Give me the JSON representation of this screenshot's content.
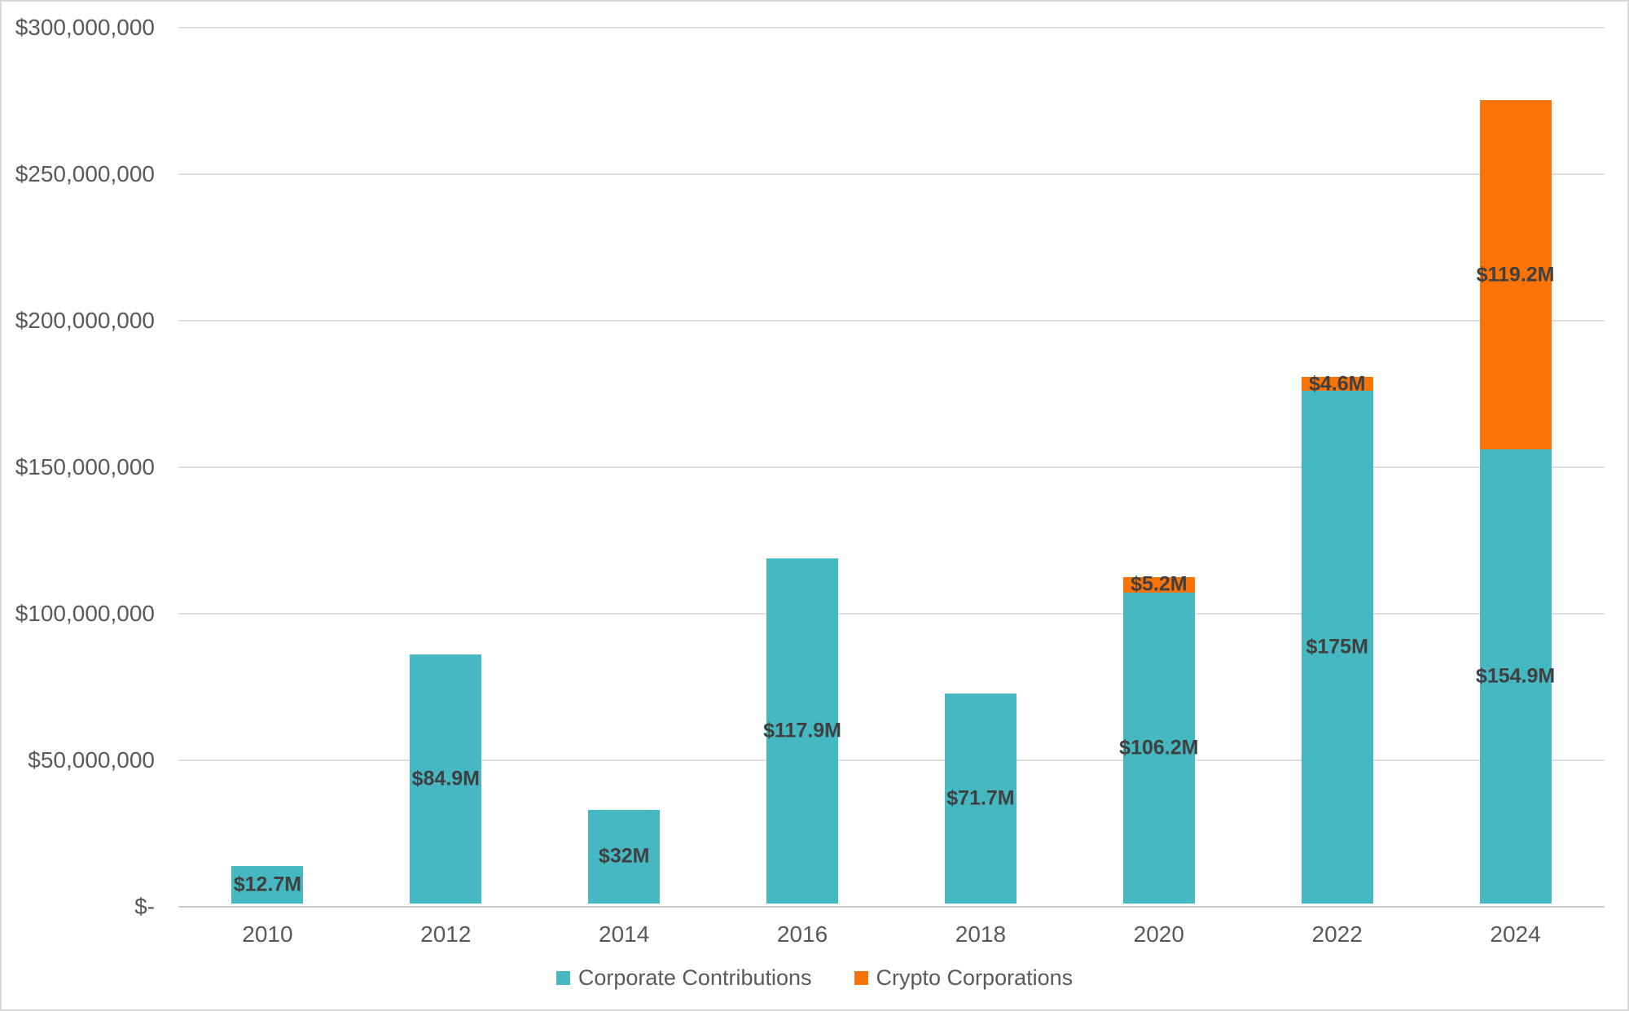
{
  "chart_data": {
    "type": "bar",
    "stacked": true,
    "title": "",
    "xlabel": "",
    "ylabel": "",
    "categories": [
      "2010",
      "2012",
      "2014",
      "2016",
      "2018",
      "2020",
      "2022",
      "2024"
    ],
    "series": [
      {
        "name": "Corporate Contributions",
        "color": "#45b8c2",
        "values_usd_millions": [
          12.7,
          84.9,
          32,
          117.9,
          71.7,
          106.2,
          175,
          154.9
        ],
        "data_labels": [
          "$12.7M",
          "$84.9M",
          "$32M",
          "$117.9M",
          "$71.7M",
          "$106.2M",
          "$175M",
          "$154.9M"
        ]
      },
      {
        "name": "Crypto Corporations",
        "color": "#fa7306",
        "values_usd_millions": [
          0,
          0,
          0,
          0,
          0,
          5.2,
          4.6,
          119.2
        ],
        "data_labels": [
          "",
          "",
          "",
          "",
          "",
          "$5.2M",
          "$4.6M",
          "$119.2M"
        ]
      }
    ],
    "ylim_usd_millions": [
      0,
      300
    ],
    "y_tick_interval_usd_millions": 50,
    "y_tick_labels_top_to_bottom": [
      "$300,000,000",
      "$250,000,000",
      "$200,000,000",
      "$150,000,000",
      "$100,000,000",
      "$50,000,000",
      "$-"
    ],
    "grid": "horizontal",
    "legend_position": "bottom-center",
    "data_label_color": "#404040",
    "axis_text_color": "#595959"
  }
}
